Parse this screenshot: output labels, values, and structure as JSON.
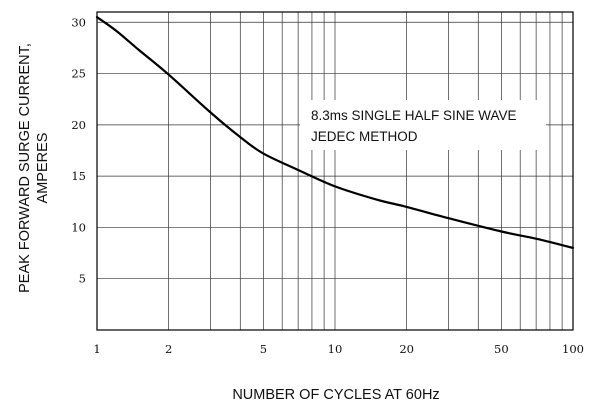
{
  "chart_data": {
    "type": "line",
    "x_scale": "log",
    "grid": true,
    "xlim": [
      1,
      100
    ],
    "ylim": [
      0,
      31
    ],
    "x_ticks": [
      1,
      2,
      5,
      10,
      20,
      50,
      100
    ],
    "y_ticks": [
      5,
      10,
      15,
      20,
      25,
      30
    ],
    "xlabel": "NUMBER OF CYCLES AT 60Hz",
    "ylabel_line1": "PEAK FORWARD SURGE CURRENT,",
    "ylabel_line2": "AMPERES",
    "annotation_line1": "8.3ms SINGLE HALF SINE WAVE",
    "annotation_line2": "JEDEC METHOD",
    "series": [
      {
        "x": [
          1,
          1.2,
          1.5,
          2,
          3,
          4,
          5,
          7,
          10,
          15,
          20,
          30,
          50,
          70,
          100
        ],
        "y": [
          30.5,
          29.2,
          27.3,
          24.9,
          21.2,
          18.8,
          17.2,
          15.6,
          14.0,
          12.7,
          12.0,
          10.9,
          9.6,
          8.9,
          8.0
        ]
      }
    ]
  }
}
